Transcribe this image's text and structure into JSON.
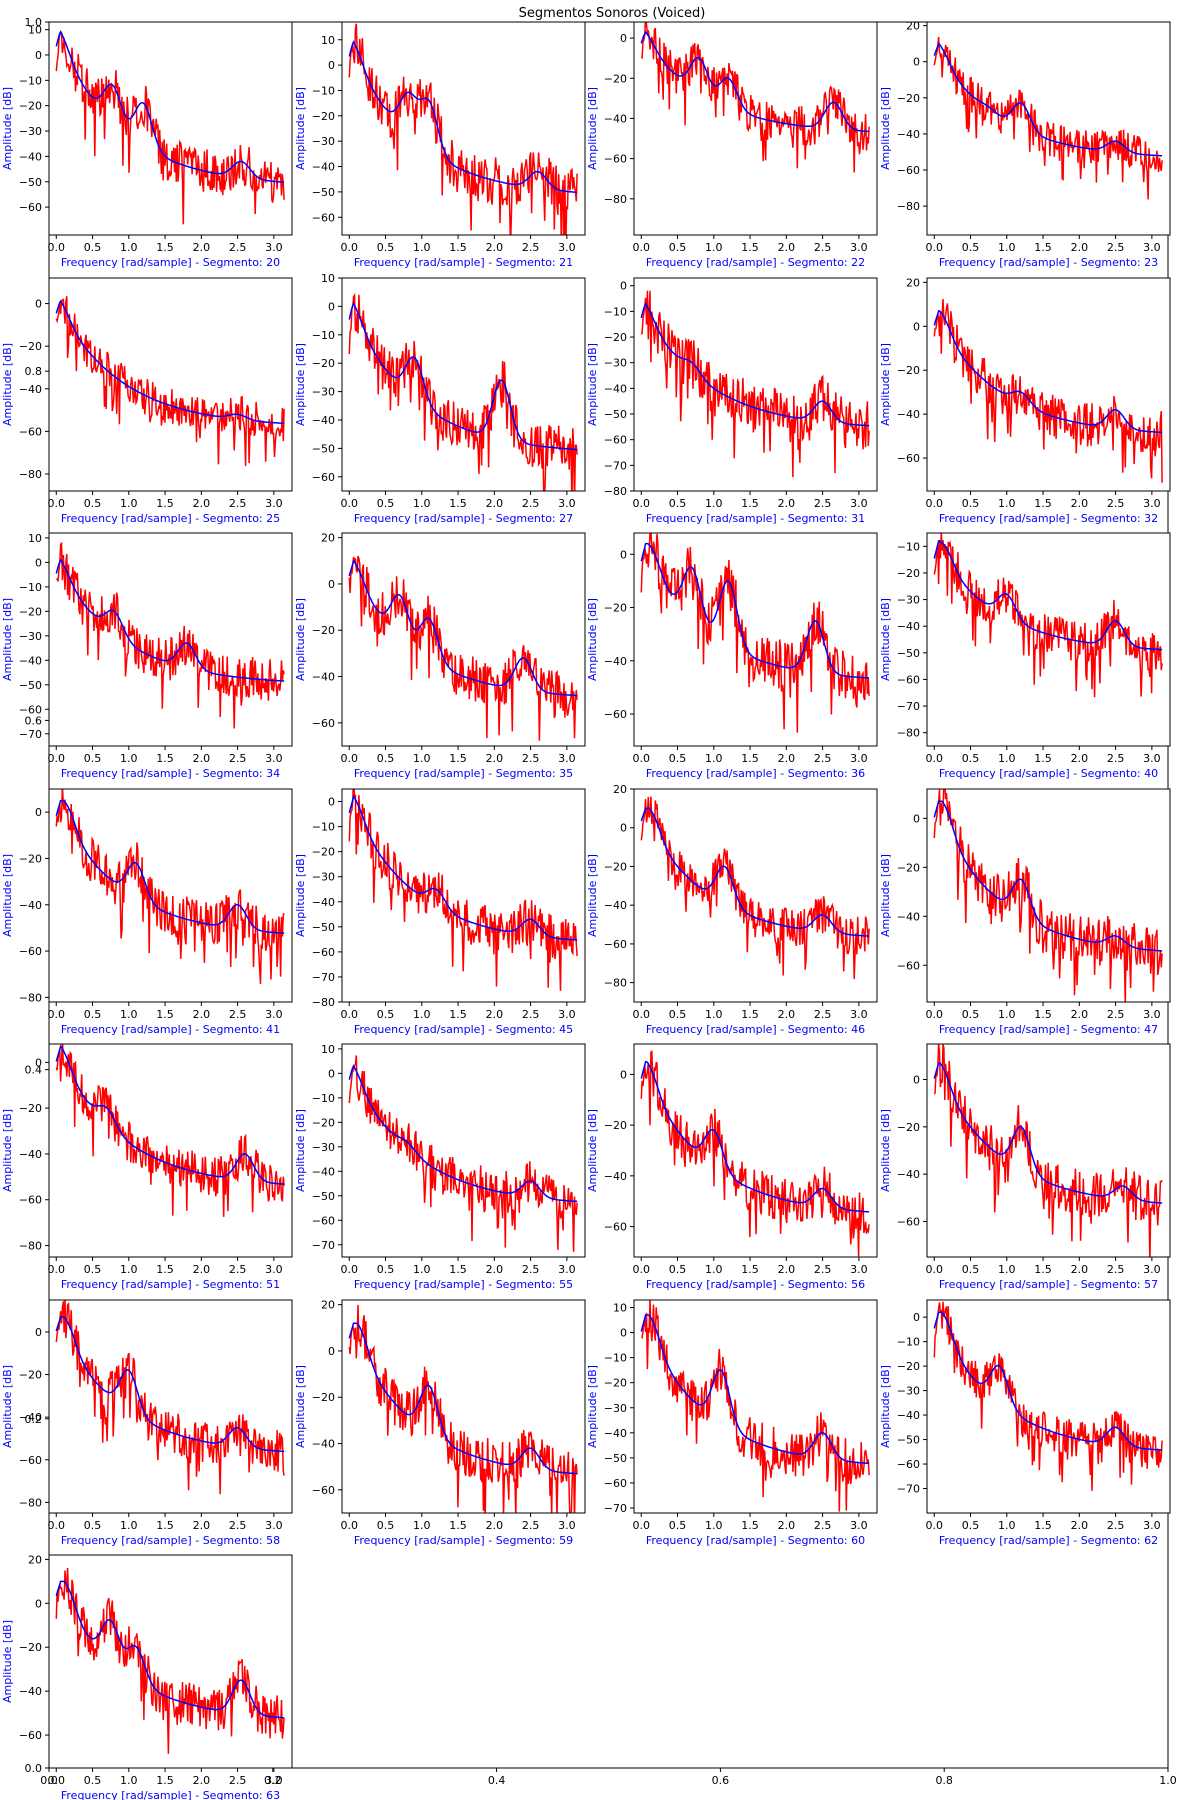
{
  "figure": {
    "title": "Segmentos Sonoros (Voiced)",
    "label_color": "#0000ff",
    "spectrum_color": "#ff0000",
    "envelope_color": "#0000ff",
    "background_axes": {
      "xticks": [
        "0.0",
        "0.2",
        "0.4",
        "0.6",
        "0.8",
        "1.0"
      ],
      "yticks": [
        "0.0",
        "0.2",
        "0.4",
        "0.6",
        "0.8",
        "1.0"
      ],
      "xlim": [
        0,
        1
      ],
      "ylim": [
        0,
        1
      ]
    }
  },
  "chart_data": [
    {
      "type": "line",
      "segment": 20,
      "xlabel": "Frequency [rad/sample] - Segmento: 20",
      "ylabel": "Amplitude [dB]",
      "xlim": [
        -0.1,
        3.25
      ],
      "ylim": [
        -71,
        13
      ],
      "yticks": [
        -60,
        -50,
        -40,
        -30,
        -20,
        -10,
        0,
        10
      ],
      "peaks": [
        [
          0.08,
          8
        ],
        [
          0.78,
          -12
        ],
        [
          1.2,
          -19
        ],
        [
          2.55,
          -42
        ]
      ],
      "end_level": -52,
      "noise": 9,
      "seed": 20
    },
    {
      "type": "line",
      "segment": 21,
      "xlabel": "Frequency [rad/sample] - Segmento: 21",
      "ylabel": "Amplitude [dB]",
      "xlim": [
        -0.1,
        3.25
      ],
      "ylim": [
        -67,
        17
      ],
      "yticks": [
        -60,
        -50,
        -40,
        -30,
        -20,
        -10,
        0,
        10
      ],
      "peaks": [
        [
          0.08,
          8
        ],
        [
          0.82,
          -12
        ],
        [
          1.1,
          -15
        ],
        [
          2.6,
          -42
        ]
      ],
      "end_level": -52,
      "noise": 10,
      "seed": 21
    },
    {
      "type": "line",
      "segment": 22,
      "xlabel": "Frequency [rad/sample] - Segmento: 22",
      "ylabel": "Amplitude [dB]",
      "xlim": [
        -0.1,
        3.25
      ],
      "ylim": [
        -98,
        8
      ],
      "yticks": [
        -80,
        -60,
        -40,
        -20,
        0
      ],
      "peaks": [
        [
          0.08,
          2
        ],
        [
          0.8,
          -10
        ],
        [
          1.2,
          -20
        ],
        [
          2.65,
          -32
        ]
      ],
      "end_level": -48,
      "noise": 10,
      "seed": 22
    },
    {
      "type": "line",
      "segment": 23,
      "xlabel": "Frequency [rad/sample] - Segmento: 23",
      "ylabel": "Amplitude [dB]",
      "xlim": [
        -0.1,
        3.25
      ],
      "ylim": [
        -96,
        22
      ],
      "yticks": [
        -80,
        -60,
        -40,
        -20,
        0,
        20
      ],
      "peaks": [
        [
          0.1,
          8
        ],
        [
          0.75,
          -25
        ],
        [
          1.2,
          -23
        ],
        [
          2.5,
          -44
        ]
      ],
      "end_level": -54,
      "noise": 10,
      "seed": 23
    },
    {
      "type": "line",
      "segment": 25,
      "xlabel": "Frequency [rad/sample] - Segmento: 25",
      "ylabel": "Amplitude [dB]",
      "xlim": [
        -0.1,
        3.25
      ],
      "ylim": [
        -88,
        12
      ],
      "yticks": [
        -80,
        -60,
        -40,
        -20,
        0
      ],
      "peaks": [
        [
          0.08,
          0
        ],
        [
          0.7,
          -33
        ],
        [
          2.5,
          -52
        ]
      ],
      "end_level": -58,
      "noise": 9,
      "seed": 25
    },
    {
      "type": "line",
      "segment": 27,
      "xlabel": "Frequency [rad/sample] - Segmento: 27",
      "ylabel": "Amplitude [dB]",
      "xlim": [
        -0.1,
        3.25
      ],
      "ylim": [
        -65,
        10
      ],
      "yticks": [
        -60,
        -50,
        -40,
        -30,
        -20,
        -10,
        0,
        10
      ],
      "peaks": [
        [
          0.08,
          0
        ],
        [
          0.9,
          -18
        ],
        [
          2.1,
          -26
        ]
      ],
      "end_level": -52,
      "noise": 8,
      "seed": 27
    },
    {
      "type": "line",
      "segment": 31,
      "xlabel": "Frequency [rad/sample] - Segmento: 31",
      "ylabel": "Amplitude [dB]",
      "xlim": [
        -0.1,
        3.25
      ],
      "ylim": [
        -80,
        3
      ],
      "yticks": [
        -80,
        -70,
        -60,
        -50,
        -40,
        -30,
        -20,
        -10,
        0
      ],
      "peaks": [
        [
          0.08,
          -8
        ],
        [
          0.7,
          -30
        ],
        [
          2.5,
          -45
        ]
      ],
      "end_level": -56,
      "noise": 10,
      "seed": 31
    },
    {
      "type": "line",
      "segment": 32,
      "xlabel": "Frequency [rad/sample] - Segmento: 32",
      "ylabel": "Amplitude [dB]",
      "xlim": [
        -0.1,
        3.25
      ],
      "ylim": [
        -75,
        22
      ],
      "yticks": [
        -60,
        -40,
        -20,
        0,
        20
      ],
      "peaks": [
        [
          0.12,
          5
        ],
        [
          1.2,
          -30
        ],
        [
          2.5,
          -38
        ]
      ],
      "end_level": -50,
      "noise": 10,
      "seed": 32
    },
    {
      "type": "line",
      "segment": 34,
      "xlabel": "Frequency [rad/sample] - Segmento: 34",
      "ylabel": "Amplitude [dB]",
      "xlim": [
        -0.1,
        3.25
      ],
      "ylim": [
        -75,
        12
      ],
      "yticks": [
        -70,
        -60,
        -50,
        -40,
        -30,
        -20,
        -10,
        0,
        10
      ],
      "peaks": [
        [
          0.08,
          0
        ],
        [
          0.8,
          -20
        ],
        [
          1.8,
          -33
        ]
      ],
      "end_level": -50,
      "noise": 9,
      "seed": 34
    },
    {
      "type": "line",
      "segment": 35,
      "xlabel": "Frequency [rad/sample] - Segmento: 35",
      "ylabel": "Amplitude [dB]",
      "xlim": [
        -0.1,
        3.25
      ],
      "ylim": [
        -70,
        22
      ],
      "yticks": [
        -60,
        -40,
        -20,
        0,
        20
      ],
      "peaks": [
        [
          0.1,
          8
        ],
        [
          0.7,
          -5
        ],
        [
          1.1,
          -15
        ],
        [
          2.4,
          -32
        ]
      ],
      "end_level": -50,
      "noise": 10,
      "seed": 35
    },
    {
      "type": "line",
      "segment": 36,
      "xlabel": "Frequency [rad/sample] - Segmento: 36",
      "ylabel": "Amplitude [dB]",
      "xlim": [
        -0.1,
        3.25
      ],
      "ylim": [
        -72,
        8
      ],
      "yticks": [
        -60,
        -40,
        -20,
        0
      ],
      "peaks": [
        [
          0.15,
          2
        ],
        [
          0.7,
          -5
        ],
        [
          1.2,
          -10
        ],
        [
          2.4,
          -25
        ]
      ],
      "end_level": -48,
      "noise": 10,
      "seed": 36
    },
    {
      "type": "line",
      "segment": 40,
      "xlabel": "Frequency [rad/sample] - Segmento: 40",
      "ylabel": "Amplitude [dB]",
      "xlim": [
        -0.1,
        3.25
      ],
      "ylim": [
        -85,
        -5
      ],
      "yticks": [
        -80,
        -70,
        -60,
        -50,
        -40,
        -30,
        -20,
        -10
      ],
      "peaks": [
        [
          0.15,
          -10
        ],
        [
          1.0,
          -28
        ],
        [
          2.5,
          -38
        ]
      ],
      "end_level": -50,
      "noise": 8,
      "seed": 40
    },
    {
      "type": "line",
      "segment": 41,
      "xlabel": "Frequency [rad/sample] - Segmento: 41",
      "ylabel": "Amplitude [dB]",
      "xlim": [
        -0.1,
        3.25
      ],
      "ylim": [
        -82,
        10
      ],
      "yticks": [
        -80,
        -60,
        -40,
        -20,
        0
      ],
      "peaks": [
        [
          0.15,
          3
        ],
        [
          1.1,
          -22
        ],
        [
          2.5,
          -40
        ]
      ],
      "end_level": -54,
      "noise": 10,
      "seed": 41
    },
    {
      "type": "line",
      "segment": 45,
      "xlabel": "Frequency [rad/sample] - Segmento: 45",
      "ylabel": "Amplitude [dB]",
      "xlim": [
        -0.1,
        3.25
      ],
      "ylim": [
        -80,
        5
      ],
      "yticks": [
        -80,
        -70,
        -60,
        -50,
        -40,
        -30,
        -20,
        -10,
        0
      ],
      "peaks": [
        [
          0.1,
          0
        ],
        [
          1.2,
          -35
        ],
        [
          2.5,
          -47
        ]
      ],
      "end_level": -57,
      "noise": 9,
      "seed": 45
    },
    {
      "type": "line",
      "segment": 46,
      "xlabel": "Frequency [rad/sample] - Segmento: 46",
      "ylabel": "Amplitude [dB]",
      "xlim": [
        -0.1,
        3.25
      ],
      "ylim": [
        -90,
        20
      ],
      "yticks": [
        -80,
        -60,
        -40,
        -20,
        0,
        20
      ],
      "peaks": [
        [
          0.15,
          8
        ],
        [
          1.15,
          -20
        ],
        [
          2.5,
          -45
        ]
      ],
      "end_level": -58,
      "noise": 10,
      "seed": 46
    },
    {
      "type": "line",
      "segment": 47,
      "xlabel": "Frequency [rad/sample] - Segmento: 47",
      "ylabel": "Amplitude [dB]",
      "xlim": [
        -0.1,
        3.25
      ],
      "ylim": [
        -75,
        12
      ],
      "yticks": [
        -60,
        -40,
        -20,
        0
      ],
      "peaks": [
        [
          0.15,
          5
        ],
        [
          1.2,
          -25
        ],
        [
          2.5,
          -48
        ]
      ],
      "end_level": -56,
      "noise": 10,
      "seed": 47
    },
    {
      "type": "line",
      "segment": 51,
      "xlabel": "Frequency [rad/sample] - Segmento: 51",
      "ylabel": "Amplitude [dB]",
      "xlim": [
        -0.1,
        3.25
      ],
      "ylim": [
        -85,
        8
      ],
      "yticks": [
        -80,
        -60,
        -40,
        -20,
        0
      ],
      "peaks": [
        [
          0.1,
          5
        ],
        [
          0.7,
          -20
        ],
        [
          2.6,
          -40
        ]
      ],
      "end_level": -55,
      "noise": 9,
      "seed": 51
    },
    {
      "type": "line",
      "segment": 55,
      "xlabel": "Frequency [rad/sample] - Segmento: 55",
      "ylabel": "Amplitude [dB]",
      "xlim": [
        -0.1,
        3.25
      ],
      "ylim": [
        -75,
        12
      ],
      "yticks": [
        -70,
        -60,
        -50,
        -40,
        -30,
        -20,
        -10,
        0,
        10
      ],
      "peaks": [
        [
          0.08,
          2
        ],
        [
          0.8,
          -28
        ],
        [
          2.5,
          -44
        ]
      ],
      "end_level": -54,
      "noise": 9,
      "seed": 55
    },
    {
      "type": "line",
      "segment": 56,
      "xlabel": "Frequency [rad/sample] - Segmento: 56",
      "ylabel": "Amplitude [dB]",
      "xlim": [
        -0.1,
        3.25
      ],
      "ylim": [
        -72,
        12
      ],
      "yticks": [
        -60,
        -40,
        -20,
        0
      ],
      "peaks": [
        [
          0.12,
          3
        ],
        [
          1.0,
          -22
        ],
        [
          2.5,
          -45
        ]
      ],
      "end_level": -56,
      "noise": 9,
      "seed": 56
    },
    {
      "type": "line",
      "segment": 57,
      "xlabel": "Frequency [rad/sample] - Segmento: 57",
      "ylabel": "Amplitude [dB]",
      "xlim": [
        -0.1,
        3.25
      ],
      "ylim": [
        -75,
        15
      ],
      "yticks": [
        -60,
        -40,
        -20,
        0
      ],
      "peaks": [
        [
          0.12,
          5
        ],
        [
          1.2,
          -20
        ],
        [
          2.6,
          -45
        ]
      ],
      "end_level": -54,
      "noise": 10,
      "seed": 57
    },
    {
      "type": "line",
      "segment": 58,
      "xlabel": "Frequency [rad/sample] - Segmento: 58",
      "ylabel": "Amplitude [dB]",
      "xlim": [
        -0.1,
        3.25
      ],
      "ylim": [
        -85,
        15
      ],
      "yticks": [
        -80,
        -60,
        -40,
        -20,
        0
      ],
      "peaks": [
        [
          0.15,
          5
        ],
        [
          1.0,
          -18
        ],
        [
          2.5,
          -45
        ]
      ],
      "end_level": -58,
      "noise": 10,
      "seed": 58
    },
    {
      "type": "line",
      "segment": 59,
      "xlabel": "Frequency [rad/sample] - Segmento: 59",
      "ylabel": "Amplitude [dB]",
      "xlim": [
        -0.1,
        3.25
      ],
      "ylim": [
        -70,
        22
      ],
      "yticks": [
        -60,
        -40,
        -20,
        0,
        20
      ],
      "peaks": [
        [
          0.15,
          10
        ],
        [
          1.1,
          -15
        ],
        [
          2.5,
          -42
        ]
      ],
      "end_level": -55,
      "noise": 10,
      "seed": 59
    },
    {
      "type": "line",
      "segment": 60,
      "xlabel": "Frequency [rad/sample] - Segmento: 60",
      "ylabel": "Amplitude [dB]",
      "xlim": [
        -0.1,
        3.25
      ],
      "ylim": [
        -72,
        13
      ],
      "yticks": [
        -70,
        -60,
        -50,
        -40,
        -30,
        -20,
        -10,
        0,
        10
      ],
      "peaks": [
        [
          0.15,
          5
        ],
        [
          1.1,
          -15
        ],
        [
          2.5,
          -40
        ]
      ],
      "end_level": -54,
      "noise": 9,
      "seed": 60
    },
    {
      "type": "line",
      "segment": 62,
      "xlabel": "Frequency [rad/sample] - Segmento: 62",
      "ylabel": "Amplitude [dB]",
      "xlim": [
        -0.1,
        3.25
      ],
      "ylim": [
        -80,
        7
      ],
      "yticks": [
        -70,
        -60,
        -50,
        -40,
        -30,
        -20,
        -10,
        0
      ],
      "peaks": [
        [
          0.15,
          0
        ],
        [
          0.9,
          -20
        ],
        [
          2.5,
          -45
        ]
      ],
      "end_level": -56,
      "noise": 8,
      "seed": 62
    },
    {
      "type": "line",
      "segment": 63,
      "xlabel": "Frequency [rad/sample] - Segmento: 63",
      "ylabel": "Amplitude [dB]",
      "xlim": [
        -0.1,
        3.25
      ],
      "ylim": [
        -75,
        22
      ],
      "yticks": [
        -60,
        -40,
        -20,
        0,
        20
      ],
      "peaks": [
        [
          0.15,
          8
        ],
        [
          0.75,
          -8
        ],
        [
          1.1,
          -20
        ],
        [
          2.55,
          -35
        ]
      ],
      "end_level": -54,
      "noise": 10,
      "seed": 63
    }
  ]
}
